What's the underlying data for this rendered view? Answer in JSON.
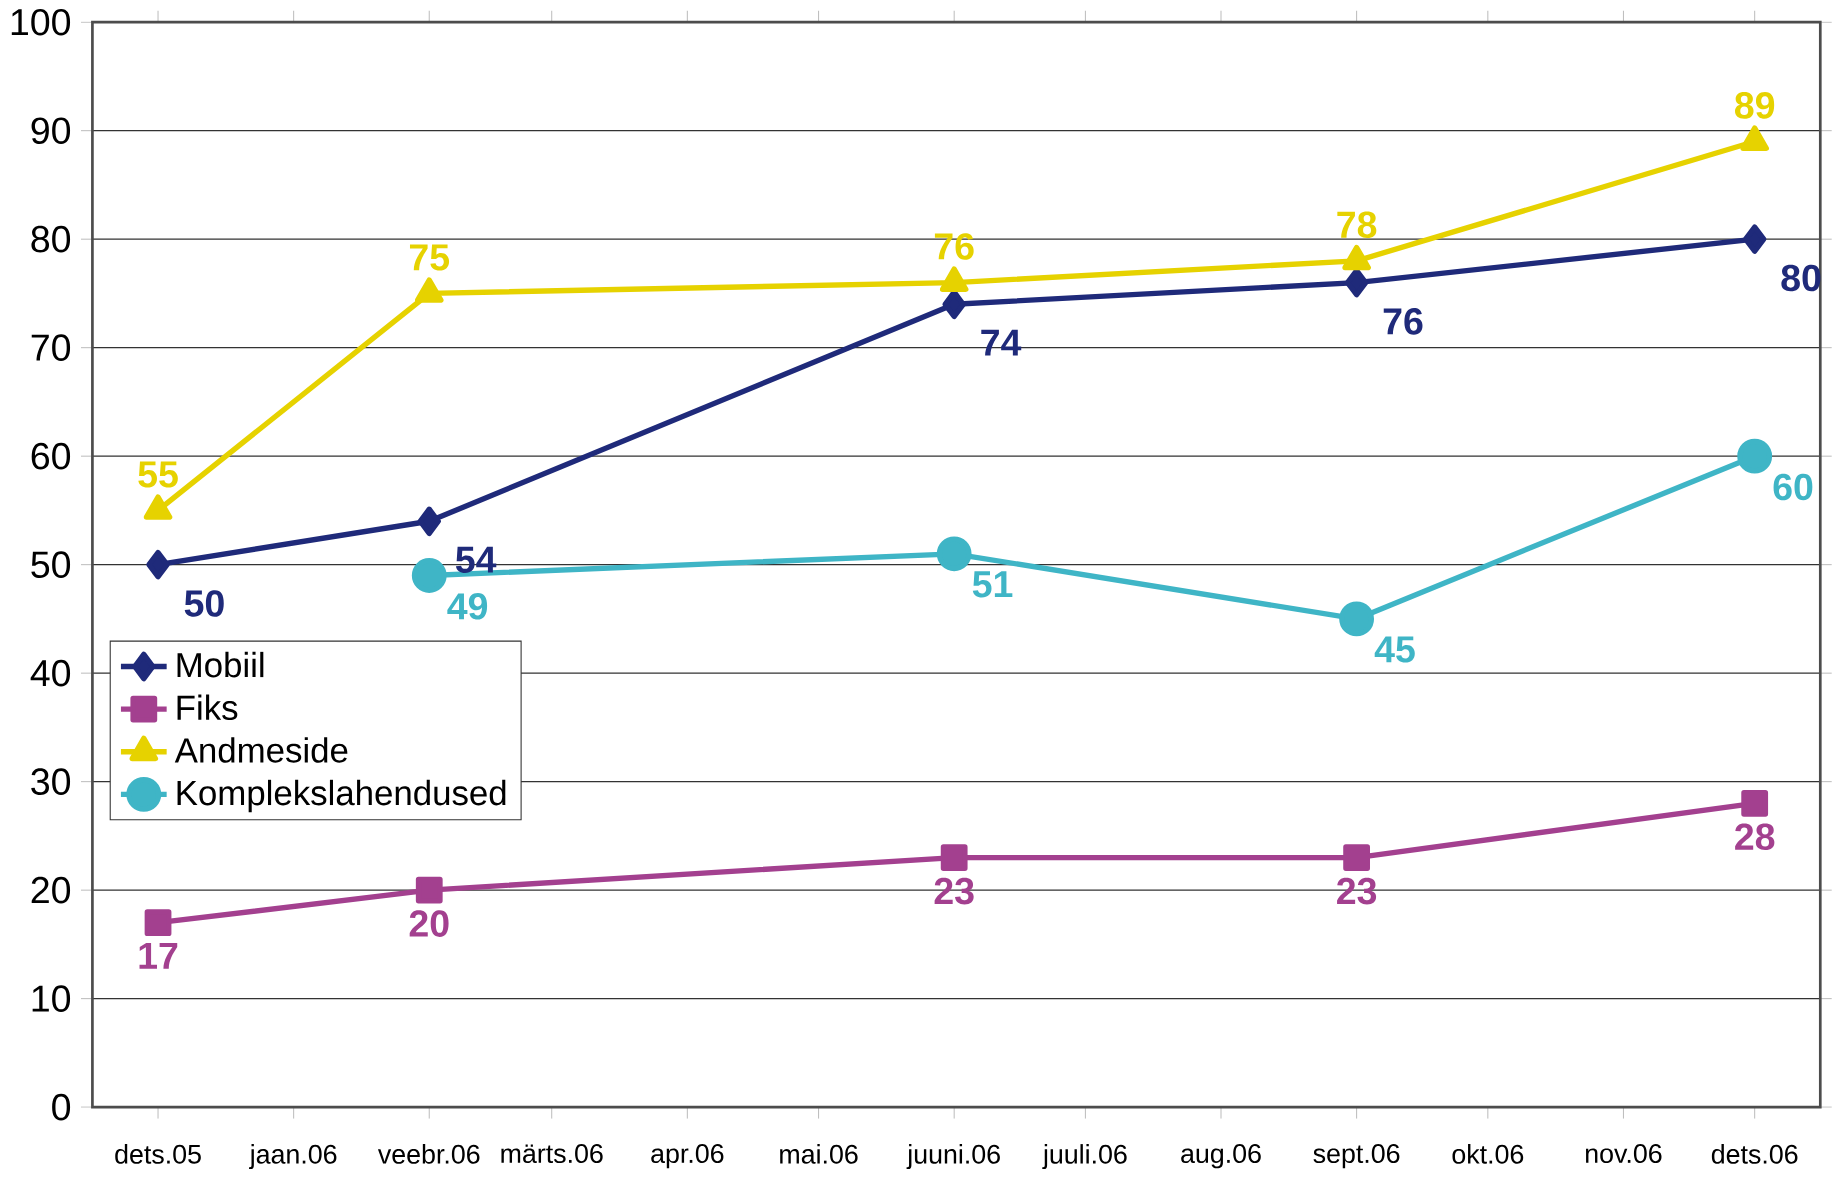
{
  "chart_data": {
    "type": "line",
    "xlim": [
      "2005-11-16",
      "2006-12-16"
    ],
    "xticks": [
      {
        "value": "2005-12",
        "label": "dets.05"
      },
      {
        "value": "2006-01",
        "label": "jaan.06"
      },
      {
        "value": "2006-02",
        "label": "veebr.06"
      },
      {
        "value": "2006-03",
        "label": "märts.06"
      },
      {
        "value": "2006-04",
        "label": "apr.06"
      },
      {
        "value": "2006-05",
        "label": "mai.06"
      },
      {
        "value": "2006-06",
        "label": "juuni.06"
      },
      {
        "value": "2006-07",
        "label": "juuli.06"
      },
      {
        "value": "2006-08",
        "label": "aug.06"
      },
      {
        "value": "2006-09",
        "label": "sept.06"
      },
      {
        "value": "2006-10",
        "label": "okt.06"
      },
      {
        "value": "2006-11",
        "label": "nov.06"
      },
      {
        "value": "2006-12",
        "label": "dets.06"
      }
    ],
    "ylim": [
      0,
      100
    ],
    "yticks": [
      0,
      10,
      20,
      30,
      40,
      50,
      60,
      70,
      80,
      90,
      100
    ],
    "grid": "y",
    "legend": "left",
    "data_labels": true,
    "series": [
      {
        "name": "Mobiil",
        "color": "#1f2a7a",
        "marker": "diamond",
        "x": [
          "2005-12",
          "2006-02",
          "2006-06",
          "2006-09",
          "2006-12"
        ],
        "values": [
          50,
          54,
          74,
          76,
          80
        ]
      },
      {
        "name": "Fiks",
        "color": "#a3408f",
        "marker": "square",
        "x": [
          "2005-12",
          "2006-02",
          "2006-06",
          "2006-09",
          "2006-12"
        ],
        "values": [
          17,
          20,
          23,
          23,
          28
        ]
      },
      {
        "name": "Andmeside",
        "color": "#e6d200",
        "marker": "triangle",
        "x": [
          "2005-12",
          "2006-02",
          "2006-06",
          "2006-09",
          "2006-12"
        ],
        "values": [
          55,
          75,
          76,
          78,
          89
        ]
      },
      {
        "name": "Komplekslahendused",
        "color": "#3fb5c6",
        "marker": "circle",
        "x": [
          "2006-02",
          "2006-06",
          "2006-09",
          "2006-12"
        ],
        "values": [
          49,
          51,
          45,
          60
        ]
      }
    ]
  }
}
